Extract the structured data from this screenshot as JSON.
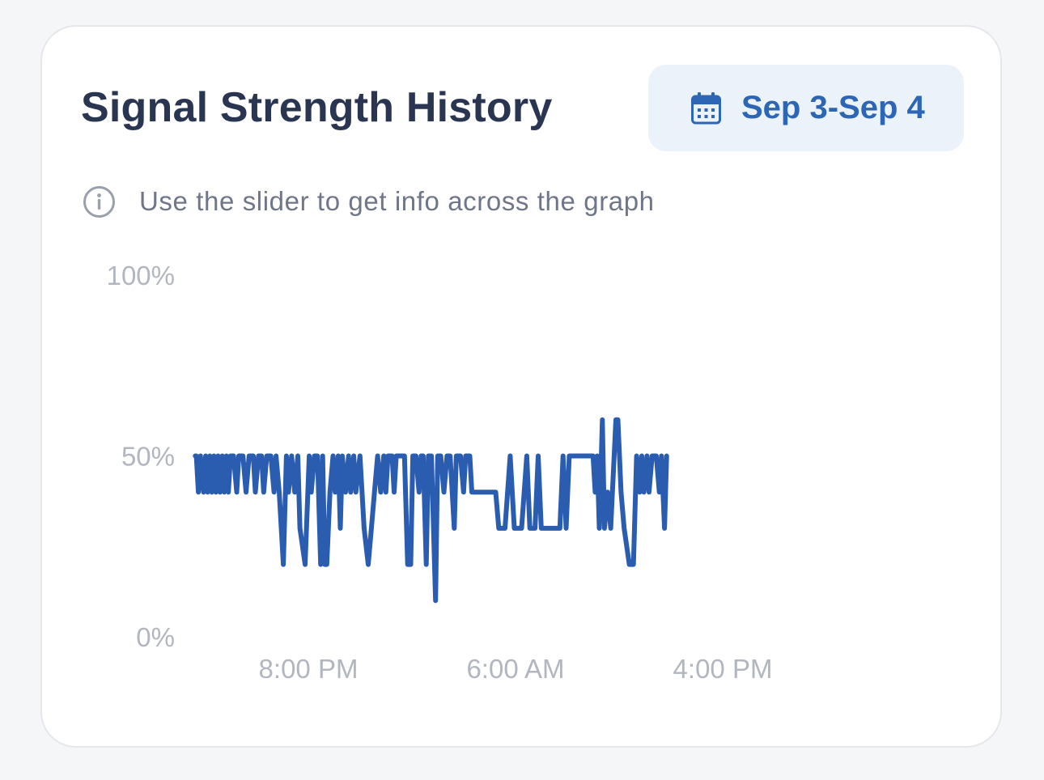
{
  "card": {
    "title": "Signal Strength History",
    "date_range_label": "Sep 3-Sep 4",
    "hint": "Use the slider to get info across the graph"
  },
  "icons": {
    "date_button": "calendar-icon",
    "hint": "info-circle-icon"
  },
  "colors": {
    "accent": "#2d66b4",
    "line": "#2a5db0",
    "title": "#2a3551",
    "date_button_bg": "#ecf2fa",
    "axis_text": "#b2b6bf"
  },
  "chart_data": {
    "type": "line",
    "x_unit": "hours after 3:00 PM Sep 3",
    "ylim": [
      0,
      100
    ],
    "xlim": [
      0,
      40
    ],
    "y_ticks": [
      {
        "value": 100,
        "label": "100%"
      },
      {
        "value": 50,
        "label": "50%"
      },
      {
        "value": 0,
        "label": "0%"
      }
    ],
    "x_ticks": [
      {
        "value": 5,
        "label": "8:00 PM"
      },
      {
        "value": 15,
        "label": "6:00 AM"
      },
      {
        "value": 25,
        "label": "4:00 PM"
      }
    ],
    "grid": false,
    "legend": "none",
    "series": [
      {
        "values": [
          [
            0.05,
            50
          ],
          [
            0.1,
            50
          ],
          [
            0.2,
            40
          ],
          [
            0.3,
            50
          ],
          [
            0.45,
            40
          ],
          [
            0.55,
            50
          ],
          [
            0.65,
            40
          ],
          [
            0.75,
            50
          ],
          [
            0.85,
            40
          ],
          [
            0.95,
            50
          ],
          [
            1.05,
            40
          ],
          [
            1.15,
            50
          ],
          [
            1.25,
            40
          ],
          [
            1.35,
            50
          ],
          [
            1.45,
            40
          ],
          [
            1.55,
            50
          ],
          [
            1.65,
            40
          ],
          [
            1.75,
            50
          ],
          [
            1.9,
            50
          ],
          [
            2.05,
            40
          ],
          [
            2.15,
            50
          ],
          [
            2.35,
            50
          ],
          [
            2.5,
            40
          ],
          [
            2.65,
            50
          ],
          [
            2.85,
            50
          ],
          [
            2.95,
            40
          ],
          [
            3.1,
            50
          ],
          [
            3.25,
            50
          ],
          [
            3.35,
            40
          ],
          [
            3.5,
            50
          ],
          [
            3.7,
            50
          ],
          [
            3.85,
            40
          ],
          [
            3.95,
            50
          ],
          [
            4.1,
            40
          ],
          [
            4.3,
            20
          ],
          [
            4.45,
            50
          ],
          [
            4.55,
            40
          ],
          [
            4.7,
            50
          ],
          [
            4.85,
            40
          ],
          [
            5.0,
            50
          ],
          [
            5.1,
            30
          ],
          [
            5.35,
            20
          ],
          [
            5.55,
            50
          ],
          [
            5.65,
            40
          ],
          [
            5.8,
            50
          ],
          [
            5.95,
            50
          ],
          [
            6.1,
            20
          ],
          [
            6.2,
            50
          ],
          [
            6.3,
            20
          ],
          [
            6.4,
            20
          ],
          [
            6.55,
            40
          ],
          [
            6.7,
            50
          ],
          [
            6.8,
            40
          ],
          [
            6.95,
            50
          ],
          [
            7.05,
            30
          ],
          [
            7.15,
            50
          ],
          [
            7.3,
            40
          ],
          [
            7.45,
            50
          ],
          [
            7.55,
            40
          ],
          [
            7.7,
            50
          ],
          [
            7.8,
            40
          ],
          [
            8.0,
            50
          ],
          [
            8.2,
            30
          ],
          [
            8.4,
            20
          ],
          [
            8.55,
            30
          ],
          [
            8.7,
            40
          ],
          [
            8.85,
            50
          ],
          [
            9.0,
            40
          ],
          [
            9.15,
            50
          ],
          [
            9.25,
            40
          ],
          [
            9.35,
            50
          ],
          [
            9.55,
            50
          ],
          [
            9.65,
            40
          ],
          [
            9.75,
            50
          ],
          [
            9.95,
            50
          ],
          [
            10.15,
            50
          ],
          [
            10.3,
            20
          ],
          [
            10.45,
            20
          ],
          [
            10.55,
            50
          ],
          [
            10.7,
            50
          ],
          [
            10.85,
            40
          ],
          [
            10.95,
            50
          ],
          [
            11.05,
            50
          ],
          [
            11.2,
            20
          ],
          [
            11.3,
            50
          ],
          [
            11.45,
            50
          ],
          [
            11.65,
            10
          ],
          [
            11.75,
            50
          ],
          [
            11.9,
            50
          ],
          [
            12.05,
            40
          ],
          [
            12.2,
            50
          ],
          [
            12.35,
            50
          ],
          [
            12.55,
            30
          ],
          [
            12.65,
            50
          ],
          [
            12.85,
            50
          ],
          [
            13.0,
            40
          ],
          [
            13.1,
            50
          ],
          [
            13.3,
            50
          ],
          [
            13.4,
            40
          ],
          [
            14.55,
            40
          ],
          [
            14.7,
            30
          ],
          [
            15.0,
            30
          ],
          [
            15.25,
            50
          ],
          [
            15.45,
            30
          ],
          [
            15.8,
            30
          ],
          [
            16.05,
            50
          ],
          [
            16.2,
            30
          ],
          [
            16.45,
            30
          ],
          [
            16.6,
            50
          ],
          [
            16.75,
            30
          ],
          [
            17.05,
            30
          ],
          [
            17.2,
            30
          ],
          [
            17.35,
            30
          ],
          [
            17.55,
            30
          ],
          [
            17.65,
            30
          ],
          [
            17.8,
            50
          ],
          [
            17.95,
            30
          ],
          [
            18.1,
            50
          ],
          [
            18.35,
            50
          ],
          [
            18.6,
            50
          ],
          [
            18.85,
            50
          ],
          [
            19.05,
            50
          ],
          [
            19.25,
            50
          ],
          [
            19.35,
            40
          ],
          [
            19.45,
            50
          ],
          [
            19.55,
            30
          ],
          [
            19.7,
            60
          ],
          [
            19.8,
            30
          ],
          [
            19.95,
            40
          ],
          [
            20.1,
            30
          ],
          [
            20.35,
            60
          ],
          [
            20.45,
            60
          ],
          [
            20.6,
            40
          ],
          [
            20.75,
            30
          ],
          [
            21.0,
            20
          ],
          [
            21.2,
            20
          ],
          [
            21.35,
            50
          ],
          [
            21.5,
            40
          ],
          [
            21.6,
            50
          ],
          [
            21.7,
            40
          ],
          [
            21.85,
            50
          ],
          [
            21.95,
            40
          ],
          [
            22.1,
            50
          ],
          [
            22.3,
            50
          ],
          [
            22.45,
            40
          ],
          [
            22.55,
            50
          ],
          [
            22.7,
            30
          ],
          [
            22.8,
            50
          ]
        ]
      }
    ]
  }
}
